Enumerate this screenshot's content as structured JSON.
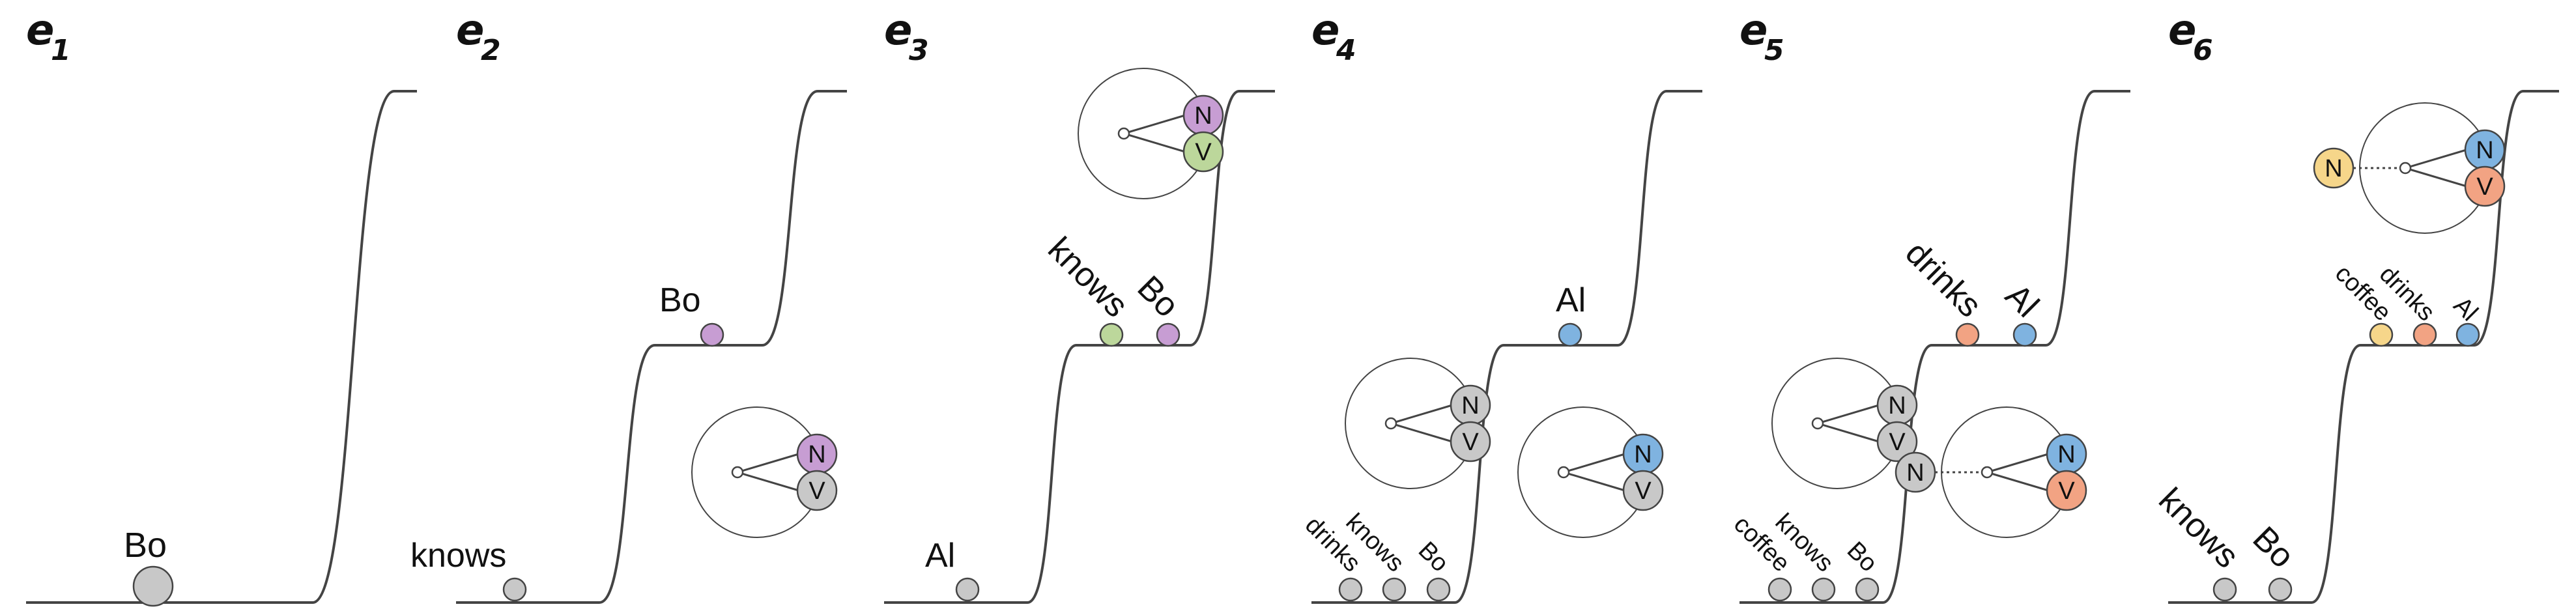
{
  "colors": {
    "gray": "#c8c8c8",
    "purple": "#c79dd3",
    "green": "#bcd79b",
    "blue": "#7fb3e0",
    "orange": "#f2a383",
    "yellow": "#f6d68a",
    "stroke": "#444444",
    "text": "#111111"
  },
  "panels": [
    {
      "label": "e",
      "sub": "1",
      "steps": 1,
      "words": [
        {
          "text": "Bo",
          "level": 0,
          "color": "gray",
          "big": true
        }
      ],
      "circles": []
    },
    {
      "label": "e",
      "sub": "2",
      "steps": 2,
      "words": [
        {
          "text": "knows",
          "level": 0,
          "color": "gray"
        },
        {
          "text": "Bo",
          "level": 1,
          "color": "purple"
        }
      ],
      "circles": [
        {
          "level": 1,
          "n": "N",
          "nColor": "purple",
          "v": "V",
          "vColor": "gray"
        }
      ]
    },
    {
      "label": "e",
      "sub": "3",
      "steps": 3,
      "words": [
        {
          "text": "Al",
          "level": 0,
          "color": "gray"
        },
        {
          "text": "knows",
          "level": 1,
          "color": "green",
          "rot": true
        },
        {
          "text": "Bo",
          "level": 1,
          "color": "purple",
          "rot": true
        }
      ],
      "circles": [
        {
          "level": 2,
          "n": "N",
          "nColor": "purple",
          "v": "V",
          "vColor": "green"
        }
      ]
    },
    {
      "label": "e",
      "sub": "4",
      "steps": 3,
      "words": [
        {
          "text": "drinks",
          "level": 0,
          "color": "gray",
          "rot": true,
          "small": true
        },
        {
          "text": "knows",
          "level": 0,
          "color": "gray",
          "rot": true,
          "small": true
        },
        {
          "text": "Bo",
          "level": 0,
          "color": "gray",
          "rot": true,
          "small": true
        },
        {
          "text": "Al",
          "level": 1,
          "color": "blue"
        }
      ],
      "circles": [
        {
          "level": 0,
          "n": "N",
          "nColor": "gray",
          "v": "V",
          "vColor": "gray"
        },
        {
          "level": 1,
          "n": "N",
          "nColor": "blue",
          "v": "V",
          "vColor": "gray"
        }
      ]
    },
    {
      "label": "e",
      "sub": "5",
      "steps": 3,
      "words": [
        {
          "text": "coffee",
          "level": 0,
          "color": "gray",
          "rot": true,
          "small": true
        },
        {
          "text": "knows",
          "level": 0,
          "color": "gray",
          "rot": true,
          "small": true
        },
        {
          "text": "Bo",
          "level": 0,
          "color": "gray",
          "rot": true,
          "small": true
        },
        {
          "text": "drinks",
          "level": 1,
          "color": "orange",
          "rot": true
        },
        {
          "text": "Al",
          "level": 1,
          "color": "blue",
          "rot": true
        }
      ],
      "circles": [
        {
          "level": 0,
          "n": "N",
          "nColor": "gray",
          "v": "V",
          "vColor": "gray"
        },
        {
          "level": 1,
          "n": "N",
          "nColor": "blue",
          "v": "V",
          "vColor": "orange",
          "extra": "N",
          "extraColor": "gray"
        }
      ]
    },
    {
      "label": "e",
      "sub": "6",
      "steps": 3,
      "words": [
        {
          "text": "knows",
          "level": 0,
          "color": "gray",
          "rot": true
        },
        {
          "text": "Bo",
          "level": 0,
          "color": "gray",
          "rot": true
        },
        {
          "text": "coffee",
          "level": 1,
          "color": "yellow",
          "rot": true,
          "small": true
        },
        {
          "text": "drinks",
          "level": 1,
          "color": "orange",
          "rot": true,
          "small": true
        },
        {
          "text": "Al",
          "level": 1,
          "color": "blue",
          "rot": true,
          "small": true
        }
      ],
      "circles": [
        {
          "level": 2,
          "n": "N",
          "nColor": "blue",
          "v": "V",
          "vColor": "orange",
          "extra": "N",
          "extraColor": "yellow"
        }
      ]
    }
  ]
}
